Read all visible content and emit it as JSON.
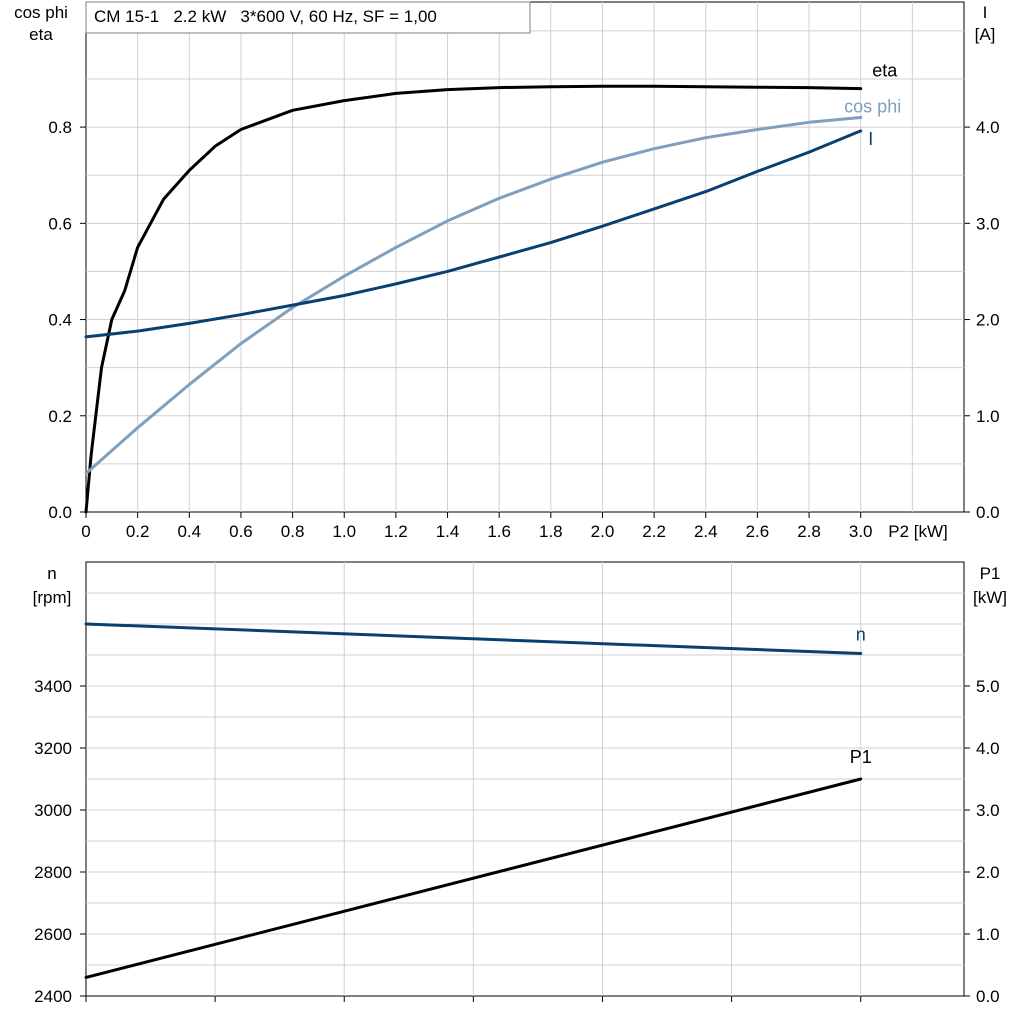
{
  "chart_data": [
    {
      "type": "line",
      "title": "CM 15-1   2.2 kW   3*600 V, 60 Hz, SF = 1,00",
      "xlabel": "P2 [kW]",
      "xlim": [
        0,
        3.4
      ],
      "xticks": [
        0,
        0.2,
        0.4,
        0.6,
        0.8,
        1.0,
        1.2,
        1.4,
        1.6,
        1.8,
        2.0,
        2.2,
        2.4,
        2.6,
        2.8,
        3.0
      ],
      "xtick_labels": [
        "0",
        "0.2",
        "0.4",
        "0.6",
        "0.8",
        "1.0",
        "1.2",
        "1.4",
        "1.6",
        "1.8",
        "2.0",
        "2.2",
        "2.4",
        "2.6",
        "2.8",
        "3.0"
      ],
      "grid": true,
      "y_left": {
        "label_lines": [
          "cos phi",
          "eta"
        ],
        "lim": [
          0,
          1.06
        ],
        "ticks": [
          0,
          0.2,
          0.4,
          0.6,
          0.8
        ],
        "tick_labels": [
          "0.0",
          "0.2",
          "0.4",
          "0.6",
          "0.8"
        ]
      },
      "y_right": {
        "label_lines": [
          "I",
          "[A]"
        ],
        "lim": [
          0,
          5.3
        ],
        "ticks": [
          0,
          1,
          2,
          3,
          4
        ],
        "tick_labels": [
          "0.0",
          "1.0",
          "2.0",
          "3.0",
          "4.0"
        ]
      },
      "series": [
        {
          "name": "eta",
          "axis": "left",
          "color": "#000000",
          "x": [
            0,
            0.02,
            0.06,
            0.1,
            0.15,
            0.2,
            0.25,
            0.3,
            0.4,
            0.5,
            0.6,
            0.8,
            1.0,
            1.2,
            1.4,
            1.6,
            1.8,
            2.0,
            2.2,
            2.4,
            2.6,
            2.8,
            3.0
          ],
          "y": [
            0,
            0.12,
            0.3,
            0.4,
            0.46,
            0.55,
            0.6,
            0.65,
            0.71,
            0.76,
            0.795,
            0.835,
            0.855,
            0.87,
            0.878,
            0.882,
            0.884,
            0.885,
            0.885,
            0.884,
            0.883,
            0.882,
            0.88
          ]
        },
        {
          "name": "cos phi",
          "axis": "left",
          "color": "#7f9fbf",
          "x": [
            0,
            0.2,
            0.4,
            0.6,
            0.8,
            1.0,
            1.2,
            1.4,
            1.6,
            1.8,
            2.0,
            2.2,
            2.4,
            2.6,
            2.8,
            3.0
          ],
          "y": [
            0.08,
            0.175,
            0.265,
            0.35,
            0.425,
            0.49,
            0.55,
            0.605,
            0.652,
            0.692,
            0.727,
            0.755,
            0.778,
            0.795,
            0.81,
            0.82
          ]
        },
        {
          "name": "I",
          "axis": "right",
          "color": "#0a4070",
          "x": [
            0,
            0.2,
            0.4,
            0.6,
            0.8,
            1.0,
            1.2,
            1.4,
            1.6,
            1.8,
            2.0,
            2.2,
            2.4,
            2.6,
            2.8,
            3.0
          ],
          "y": [
            1.82,
            1.88,
            1.96,
            2.05,
            2.15,
            2.25,
            2.37,
            2.5,
            2.65,
            2.8,
            2.97,
            3.15,
            3.33,
            3.54,
            3.74,
            3.96
          ]
        }
      ]
    },
    {
      "type": "line",
      "xlim": [
        0,
        3.4
      ],
      "xticks": [
        0,
        0.5,
        1.0,
        1.5,
        2.0,
        2.5,
        3.0
      ],
      "grid": true,
      "y_left": {
        "label_lines": [
          "n",
          "[rpm]"
        ],
        "lim": [
          2400,
          3800
        ],
        "ticks": [
          2400,
          2600,
          2800,
          3000,
          3200,
          3400
        ],
        "tick_labels": [
          "2400",
          "2600",
          "2800",
          "3000",
          "3200",
          "3400"
        ]
      },
      "y_right": {
        "label_lines": [
          "P1",
          "[kW]"
        ],
        "lim": [
          0,
          7
        ],
        "ticks": [
          0,
          1,
          2,
          3,
          4,
          5
        ],
        "tick_labels": [
          "0.0",
          "1.0",
          "2.0",
          "3.0",
          "4.0",
          "5.0"
        ]
      },
      "series": [
        {
          "name": "n",
          "axis": "left",
          "color": "#0a4070",
          "x": [
            0,
            3.0
          ],
          "y": [
            3600,
            3505
          ]
        },
        {
          "name": "P1",
          "axis": "right",
          "color": "#000000",
          "x": [
            0,
            3.0
          ],
          "y": [
            0.3,
            3.5
          ]
        }
      ]
    }
  ]
}
